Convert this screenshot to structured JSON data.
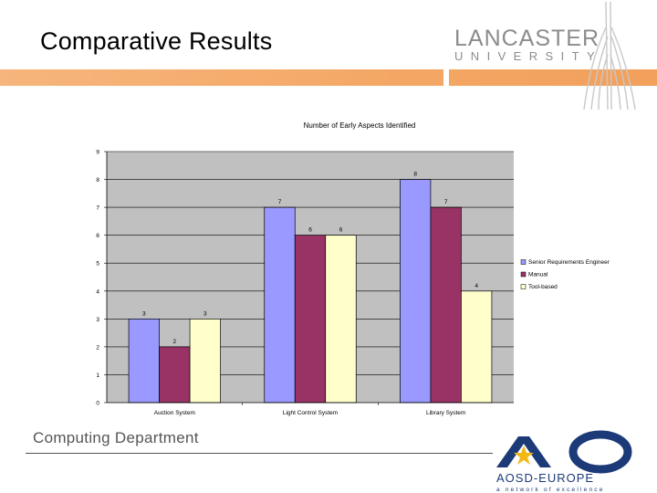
{
  "slide": {
    "title": "Comparative Results",
    "department": "Computing Department"
  },
  "logos": {
    "lancaster_line1": "LANCASTER",
    "lancaster_line2": "UNIVERSITY",
    "aosd_line1": "AOSD-EUROPE",
    "aosd_line2": "a network of excellence"
  },
  "colors": {
    "accent_bar": "#f4a765",
    "plot_bg": "#c0c0c0",
    "aosd_blue": "#1c3a78",
    "aosd_star": "#f2b818"
  },
  "chart_data": {
    "type": "bar",
    "title": "Number of Early Aspects Identified",
    "categories": [
      "Auction System",
      "Light Control System",
      "Library System"
    ],
    "series": [
      {
        "name": "Senior Requirements Engineer",
        "values": [
          3,
          7,
          8
        ],
        "color": "#9999ff"
      },
      {
        "name": "Manual",
        "values": [
          2,
          6,
          7
        ],
        "color": "#993366"
      },
      {
        "name": "Tool-based",
        "values": [
          3,
          6,
          4
        ],
        "color": "#ffffcc"
      }
    ],
    "ylim": [
      0,
      9
    ],
    "yticks": [
      0,
      1,
      2,
      3,
      4,
      5,
      6,
      7,
      8,
      9
    ],
    "xlabel": "",
    "ylabel": "",
    "grid": true,
    "legend": "right"
  }
}
